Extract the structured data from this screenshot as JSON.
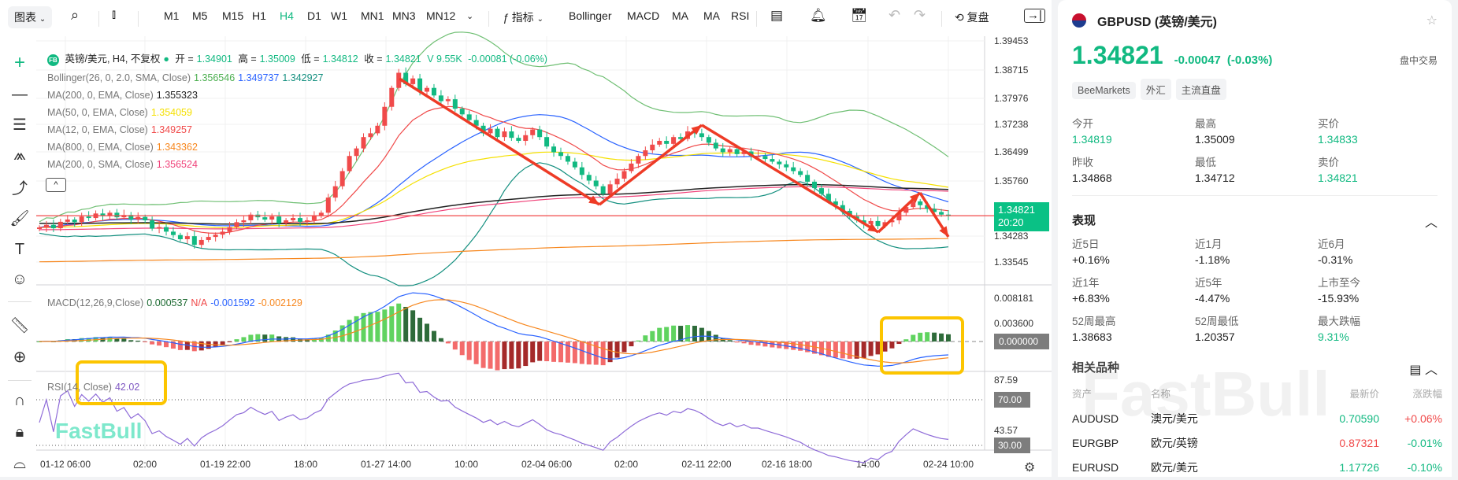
{
  "toolbar": {
    "chart_menu": "图表",
    "timeframes": [
      "M1",
      "M5",
      "M15",
      "H1",
      "H4",
      "D1",
      "W1",
      "MN1",
      "MN3",
      "MN12"
    ],
    "active_timeframe": "H4",
    "indicators_label": "指标",
    "quick_indicators": [
      "Bollinger",
      "MACD",
      "MA",
      "MA",
      "RSI"
    ],
    "replay_label": "复盘"
  },
  "legend": {
    "symbol_logo": "FB",
    "symbol": "英镑/美元, H4, 不复权",
    "open_label": "开 =",
    "open": "1.34901",
    "high_label": "高 =",
    "high": "1.35009",
    "low_label": "低 =",
    "low": "1.34812",
    "close_label": "收 =",
    "close": "1.34821",
    "volume": "V 9.55K",
    "change": "-0.00081 (-0.06%)",
    "bollinger": {
      "label": "Bollinger(26, 0, 2.0, SMA, Close)",
      "upper": "1.356546",
      "middle": "1.349737",
      "lower": "1.342927"
    },
    "mas": [
      {
        "label": "MA(200, 0, EMA, Close)",
        "value": "1.355323",
        "color": "#222222"
      },
      {
        "label": "MA(50, 0, EMA, Close)",
        "value": "1.354059",
        "color": "#f5e000"
      },
      {
        "label": "MA(12, 0, EMA, Close)",
        "value": "1.349257",
        "color": "#f04a4a"
      },
      {
        "label": "MA(800, 0, EMA, Close)",
        "value": "1.343362",
        "color": "#f7871e"
      },
      {
        "label": "MA(200, 0, SMA, Close)",
        "value": "1.356524",
        "color": "#f0437a"
      }
    ],
    "macd": {
      "label": "MACD(12,26,9,Close)",
      "hist": "0.000537",
      "na": "N/A",
      "macd": "-0.001592",
      "signal": "-0.002129"
    },
    "rsi": {
      "label": "RSI(14, Close)",
      "value": "42.02"
    }
  },
  "price_axis": [
    "1.39453",
    "1.38715",
    "1.37976",
    "1.37238",
    "1.36499",
    "1.35760",
    "1.34283",
    "1.33545"
  ],
  "macd_axis": [
    "0.008181",
    "0.003600"
  ],
  "macd_zero": "0.000000",
  "rsi_axis": {
    "top": "87.59",
    "ob": "70.00",
    "mid": "43.57",
    "os": "30.00"
  },
  "time_axis": [
    "01-12 06:00",
    "02:00",
    "01-19 22:00",
    "18:00",
    "01-27 14:00",
    "10:00",
    "02-04 06:00",
    "02:00",
    "02-11 22:00",
    "02-16 18:00",
    "14:00",
    "02-24 10:00"
  ],
  "last_price_tag": {
    "price": "1.34821",
    "countdown": "20:20"
  },
  "watermark": "FastBull",
  "chart_data": {
    "type": "candlestick",
    "up_color": "#f04a4a",
    "down_color": "#11b981",
    "ylim": [
      1.3318,
      1.395
    ],
    "close": [
      1.3451,
      1.3458,
      1.3449,
      1.3466,
      1.3472,
      1.3465,
      1.348,
      1.3476,
      1.3488,
      1.3482,
      1.349,
      1.3478,
      1.3484,
      1.3472,
      1.3479,
      1.347,
      1.3448,
      1.3452,
      1.344,
      1.3431,
      1.342,
      1.3428,
      1.3405,
      1.3418,
      1.3426,
      1.3432,
      1.344,
      1.3452,
      1.3465,
      1.347,
      1.3485,
      1.3478,
      1.3472,
      1.348,
      1.3462,
      1.347,
      1.3476,
      1.3466,
      1.347,
      1.3482,
      1.349,
      1.353,
      1.356,
      1.36,
      1.364,
      1.366,
      1.369,
      1.37,
      1.372,
      1.377,
      1.382,
      1.386,
      1.383,
      1.3845,
      1.381,
      1.382,
      1.38,
      1.3785,
      1.379,
      1.3765,
      1.375,
      1.3735,
      1.372,
      1.37,
      1.3712,
      1.369,
      1.3705,
      1.3688,
      1.368,
      1.3695,
      1.371,
      1.369,
      1.3665,
      1.365,
      1.364,
      1.3625,
      1.361,
      1.359,
      1.3575,
      1.356,
      1.354,
      1.3565,
      1.358,
      1.36,
      1.362,
      1.364,
      1.3655,
      1.367,
      1.368,
      1.3672,
      1.369,
      1.3685,
      1.3705,
      1.37,
      1.369,
      1.3675,
      1.366,
      1.365,
      1.3658,
      1.3645,
      1.3652,
      1.364,
      1.364,
      1.3632,
      1.3625,
      1.3618,
      1.361,
      1.36,
      1.359,
      1.3572,
      1.3555,
      1.354,
      1.352,
      1.351,
      1.3495,
      1.348,
      1.347,
      1.346,
      1.3468,
      1.3455,
      1.3465,
      1.347,
      1.349,
      1.3505,
      1.352,
      1.351,
      1.35,
      1.3492,
      1.3485,
      1.3482
    ],
    "last_price": 1.34821,
    "rsi_levels": [
      70,
      30
    ]
  },
  "panel": {
    "symbol": "GBPUSD (英镑/美元)",
    "price": "1.34821",
    "change": "-0.00047",
    "change_pct": "(-0.03%)",
    "session": "盘中交易",
    "tags": [
      "BeeMarkets",
      "外汇",
      "主流直盘"
    ],
    "stats": [
      {
        "label": "今开",
        "value": "1.34819",
        "color": "g"
      },
      {
        "label": "最高",
        "value": "1.35009",
        "color": ""
      },
      {
        "label": "买价",
        "value": "1.34833",
        "color": "g"
      },
      {
        "label": "昨收",
        "value": "1.34868",
        "color": ""
      },
      {
        "label": "最低",
        "value": "1.34712",
        "color": ""
      },
      {
        "label": "卖价",
        "value": "1.34821",
        "color": "g"
      }
    ],
    "performance_title": "表现",
    "performance": [
      {
        "label": "近5日",
        "value": "+0.16%"
      },
      {
        "label": "近1月",
        "value": "-1.18%"
      },
      {
        "label": "近6月",
        "value": "-0.31%"
      },
      {
        "label": "近1年",
        "value": "+6.83%"
      },
      {
        "label": "近5年",
        "value": "-4.47%"
      },
      {
        "label": "上市至今",
        "value": "-15.93%"
      },
      {
        "label": "52周最高",
        "value": "1.38683"
      },
      {
        "label": "52周最低",
        "value": "1.20357"
      },
      {
        "label": "最大跌幅",
        "value": "9.31%",
        "color": "g"
      }
    ],
    "related_title": "相关品种",
    "related_headers": [
      "资产",
      "名称",
      "最新价",
      "涨跌幅"
    ],
    "related": [
      {
        "asset": "AUDUSD",
        "name": "澳元/美元",
        "price": "0.70590",
        "change": "+0.06%",
        "pc": "g",
        "cc": "r"
      },
      {
        "asset": "EURGBP",
        "name": "欧元/英镑",
        "price": "0.87321",
        "change": "-0.01%",
        "pc": "r",
        "cc": "g"
      },
      {
        "asset": "EURUSD",
        "name": "欧元/美元",
        "price": "1.17726",
        "change": "-0.10%",
        "pc": "g",
        "cc": "g"
      }
    ]
  }
}
